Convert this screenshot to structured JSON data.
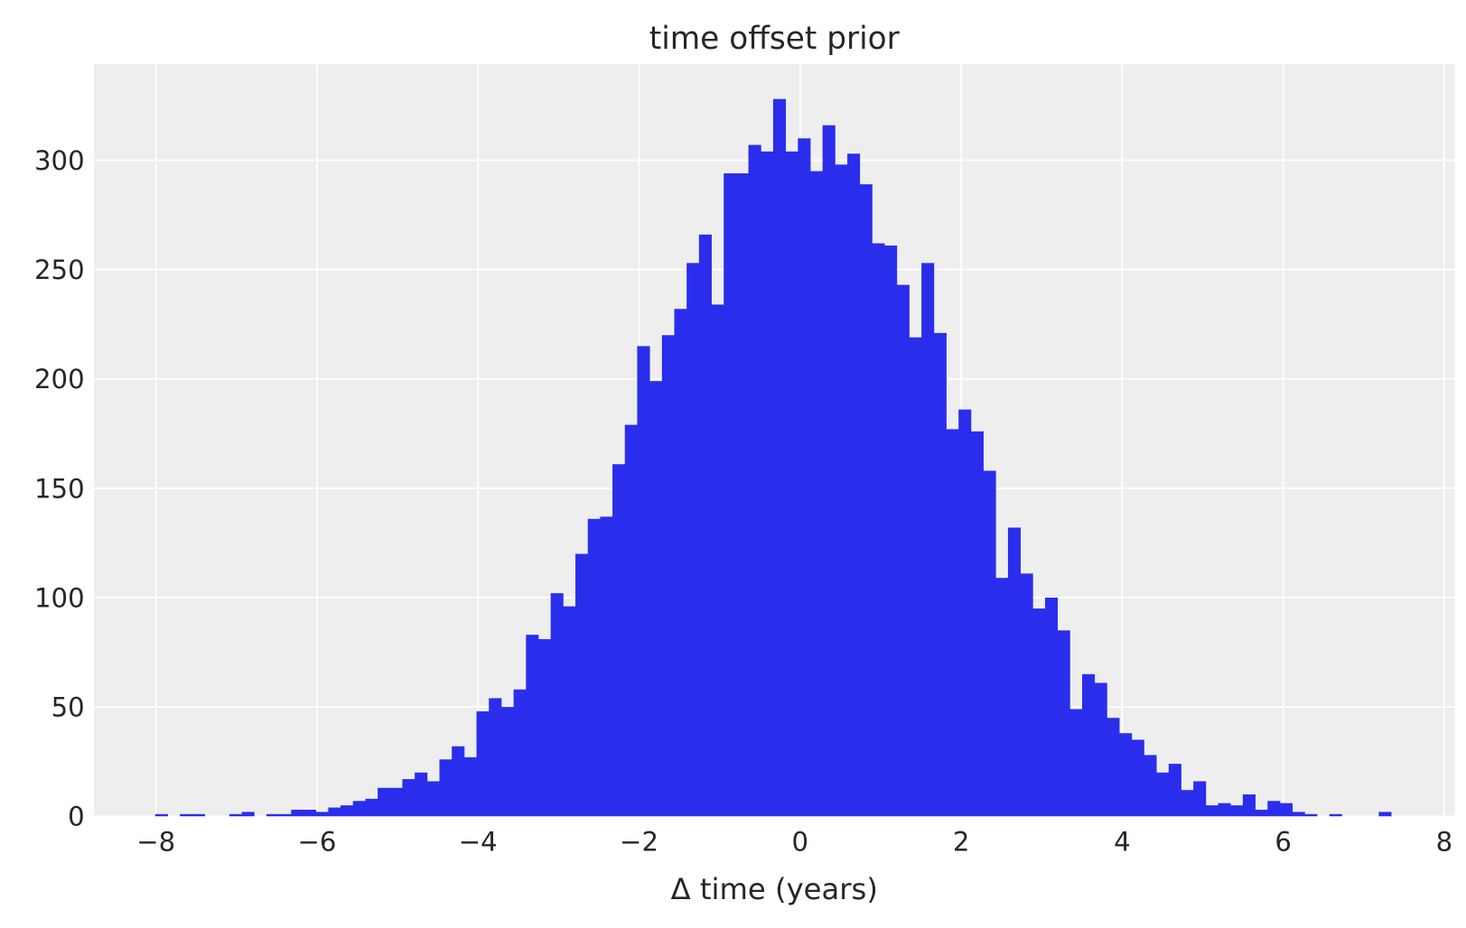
{
  "chart_data": {
    "type": "bar",
    "subtype": "histogram",
    "title": "time offset prior",
    "xlabel": "Δ time (years)",
    "ylabel": "",
    "bin_start": -8.01,
    "bin_width": 0.1535,
    "counts": [
      1,
      0,
      1,
      1,
      0,
      0,
      1,
      2,
      0,
      1,
      1,
      3,
      3,
      2,
      4,
      5,
      7,
      8,
      13,
      13,
      17,
      20,
      16,
      26,
      32,
      27,
      48,
      54,
      50,
      58,
      83,
      81,
      102,
      96,
      120,
      136,
      137,
      161,
      179,
      215,
      199,
      220,
      232,
      253,
      266,
      234,
      294,
      294,
      307,
      304,
      328,
      304,
      310,
      295,
      316,
      298,
      303,
      289,
      262,
      261,
      243,
      219,
      253,
      221,
      177,
      186,
      176,
      158,
      109,
      132,
      111,
      95,
      100,
      85,
      49,
      65,
      61,
      45,
      38,
      35,
      28,
      20,
      24,
      12,
      16,
      5,
      6,
      5,
      10,
      3,
      7,
      6,
      2,
      1,
      0,
      1,
      0,
      0,
      0,
      2
    ],
    "xlim": [
      -8.77,
      8.13
    ],
    "ylim": [
      0,
      344
    ],
    "xticks": [
      -8,
      -6,
      -4,
      -2,
      0,
      2,
      4,
      6,
      8
    ],
    "xtick_labels": [
      "−8",
      "−6",
      "−4",
      "−2",
      "0",
      "2",
      "4",
      "6",
      "8"
    ],
    "yticks": [
      0,
      50,
      100,
      150,
      200,
      250,
      300
    ],
    "ytick_labels": [
      "0",
      "50",
      "100",
      "150",
      "200",
      "250",
      "300"
    ],
    "grid": true,
    "colors": {
      "bar": "#2a2eec",
      "background": "#eeeeee",
      "grid": "#ffffff"
    }
  }
}
